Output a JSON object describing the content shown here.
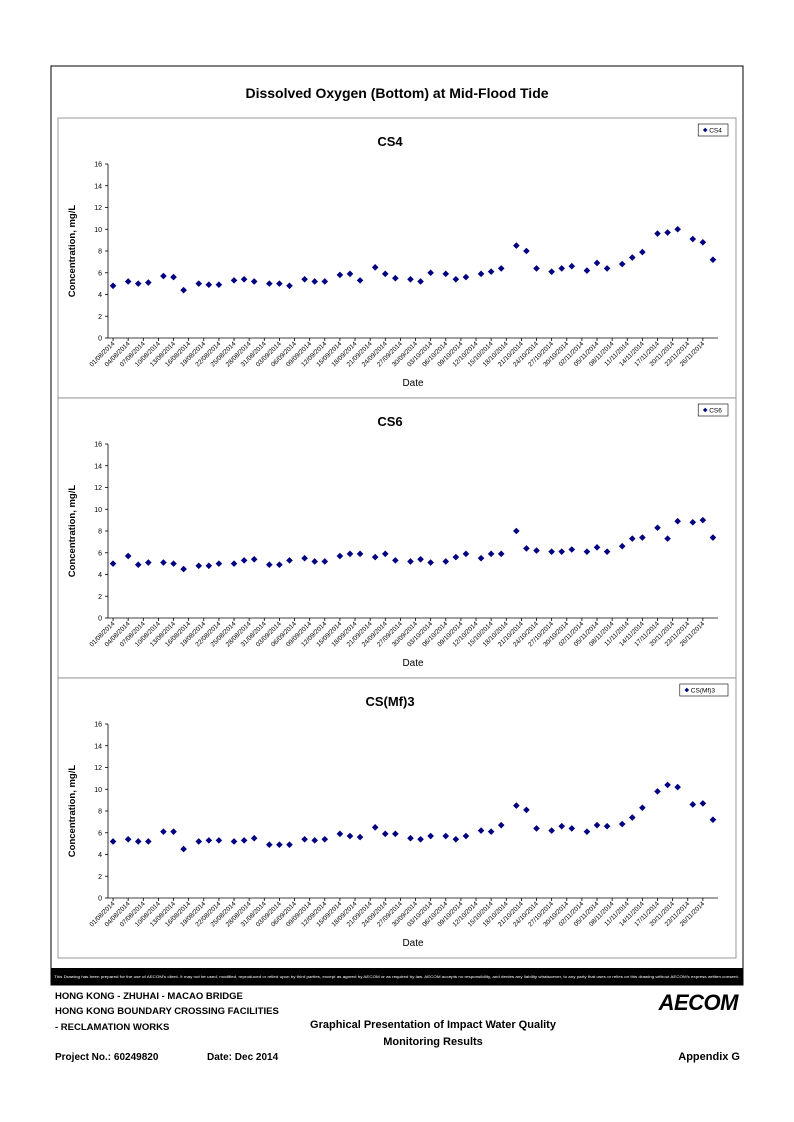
{
  "title": "Dissolved Oxygen (Bottom) at Mid-Flood Tide",
  "chart_data": [
    {
      "type": "scatter",
      "title": "CS4",
      "x_label": "Date",
      "y_label": "Concentration, mg/L",
      "legend": "upper right",
      "x": [
        "01/08/2014",
        "04/08/2014",
        "06/08/2014",
        "08/08/2014",
        "11/08/2014",
        "13/08/2014",
        "15/08/2014",
        "18/08/2014",
        "20/08/2014",
        "22/08/2014",
        "25/08/2014",
        "27/08/2014",
        "29/08/2014",
        "01/09/2014",
        "03/09/2014",
        "05/09/2014",
        "08/09/2014",
        "10/09/2014",
        "12/09/2014",
        "15/09/2014",
        "17/09/2014",
        "19/09/2014",
        "22/09/2014",
        "24/09/2014",
        "26/09/2014",
        "29/09/2014",
        "01/10/2014",
        "03/10/2014",
        "06/10/2014",
        "08/10/2014",
        "10/10/2014",
        "13/10/2014",
        "15/10/2014",
        "17/10/2014",
        "20/10/2014",
        "22/10/2014",
        "24/10/2014",
        "27/10/2014",
        "29/10/2014",
        "31/10/2014",
        "03/11/2014",
        "05/11/2014",
        "07/11/2014",
        "10/11/2014",
        "12/11/2014",
        "14/11/2014",
        "17/11/2014",
        "19/11/2014",
        "21/11/2014",
        "24/11/2014",
        "26/11/2014",
        "28/11/2014"
      ],
      "xlim": [
        "31/07/2014",
        "29/11/2014"
      ],
      "xticks": [
        "01/08/2014",
        "04/08/2014",
        "07/08/2014",
        "10/08/2014",
        "13/08/2014",
        "16/08/2014",
        "19/08/2014",
        "22/08/2014",
        "25/08/2014",
        "28/08/2014",
        "31/08/2014",
        "03/09/2014",
        "06/09/2014",
        "09/09/2014",
        "12/09/2014",
        "15/09/2014",
        "18/09/2014",
        "21/09/2014",
        "24/09/2014",
        "27/09/2014",
        "30/09/2014",
        "03/10/2014",
        "06/10/2014",
        "09/10/2014",
        "12/10/2014",
        "15/10/2014",
        "18/10/2014",
        "21/10/2014",
        "24/10/2014",
        "27/10/2014",
        "30/10/2014",
        "02/11/2014",
        "05/11/2014",
        "08/11/2014",
        "11/11/2014",
        "14/11/2014",
        "17/11/2014",
        "20/11/2014",
        "23/11/2014",
        "26/11/2014"
      ],
      "ylim": [
        0,
        16
      ],
      "yticks": [
        0,
        2,
        4,
        6,
        8,
        10,
        12,
        14,
        16
      ],
      "series": [
        {
          "name": "CS4",
          "color": "#000080",
          "values": [
            4.8,
            5.2,
            5.0,
            5.1,
            5.7,
            5.6,
            4.4,
            5.0,
            4.9,
            4.9,
            5.3,
            5.4,
            5.2,
            5.0,
            5.0,
            4.8,
            5.4,
            5.2,
            5.2,
            5.8,
            5.9,
            5.3,
            6.5,
            5.9,
            5.5,
            5.4,
            5.2,
            6.0,
            5.9,
            5.4,
            5.6,
            5.9,
            6.1,
            6.4,
            8.5,
            8.0,
            6.4,
            6.1,
            6.4,
            6.6,
            6.2,
            6.9,
            6.4,
            6.8,
            7.4,
            7.9,
            9.6,
            9.7,
            10.0,
            9.1,
            8.8,
            7.2
          ]
        }
      ]
    },
    {
      "type": "scatter",
      "title": "CS6",
      "x_label": "Date",
      "y_label": "Concentration, mg/L",
      "legend": "upper right",
      "x": [
        "01/08/2014",
        "04/08/2014",
        "06/08/2014",
        "08/08/2014",
        "11/08/2014",
        "13/08/2014",
        "15/08/2014",
        "18/08/2014",
        "20/08/2014",
        "22/08/2014",
        "25/08/2014",
        "27/08/2014",
        "29/08/2014",
        "01/09/2014",
        "03/09/2014",
        "05/09/2014",
        "08/09/2014",
        "10/09/2014",
        "12/09/2014",
        "15/09/2014",
        "17/09/2014",
        "19/09/2014",
        "22/09/2014",
        "24/09/2014",
        "26/09/2014",
        "29/09/2014",
        "01/10/2014",
        "03/10/2014",
        "06/10/2014",
        "08/10/2014",
        "10/10/2014",
        "13/10/2014",
        "15/10/2014",
        "17/10/2014",
        "20/10/2014",
        "22/10/2014",
        "24/10/2014",
        "27/10/2014",
        "29/10/2014",
        "31/10/2014",
        "03/11/2014",
        "05/11/2014",
        "07/11/2014",
        "10/11/2014",
        "12/11/2014",
        "14/11/2014",
        "17/11/2014",
        "19/11/2014",
        "21/11/2014",
        "24/11/2014",
        "26/11/2014",
        "28/11/2014"
      ],
      "xlim": [
        "31/07/2014",
        "29/11/2014"
      ],
      "xticks": [
        "01/08/2014",
        "04/08/2014",
        "07/08/2014",
        "10/08/2014",
        "13/08/2014",
        "16/08/2014",
        "19/08/2014",
        "22/08/2014",
        "25/08/2014",
        "28/08/2014",
        "31/08/2014",
        "03/09/2014",
        "06/09/2014",
        "09/09/2014",
        "12/09/2014",
        "15/09/2014",
        "18/09/2014",
        "21/09/2014",
        "24/09/2014",
        "27/09/2014",
        "30/09/2014",
        "03/10/2014",
        "06/10/2014",
        "09/10/2014",
        "12/10/2014",
        "15/10/2014",
        "18/10/2014",
        "21/10/2014",
        "24/10/2014",
        "27/10/2014",
        "30/10/2014",
        "02/11/2014",
        "05/11/2014",
        "08/11/2014",
        "11/11/2014",
        "14/11/2014",
        "17/11/2014",
        "20/11/2014",
        "23/11/2014",
        "26/11/2014"
      ],
      "ylim": [
        0,
        16
      ],
      "yticks": [
        0,
        2,
        4,
        6,
        8,
        10,
        12,
        14,
        16
      ],
      "series": [
        {
          "name": "CS6",
          "color": "#000080",
          "values": [
            5.0,
            5.7,
            4.9,
            5.1,
            5.1,
            5.0,
            4.5,
            4.8,
            4.8,
            5.0,
            5.0,
            5.3,
            5.4,
            4.9,
            4.9,
            5.3,
            5.5,
            5.2,
            5.2,
            5.7,
            5.9,
            5.9,
            5.6,
            5.9,
            5.3,
            5.2,
            5.4,
            5.1,
            5.2,
            5.6,
            5.9,
            5.5,
            5.9,
            5.9,
            8.0,
            6.4,
            6.2,
            6.1,
            6.1,
            6.3,
            6.1,
            6.5,
            6.1,
            6.6,
            7.3,
            7.4,
            8.3,
            7.3,
            8.9,
            8.8,
            9.0,
            7.4
          ]
        }
      ]
    },
    {
      "type": "scatter",
      "title": "CS(Mf)3",
      "x_label": "Date",
      "y_label": "Concentration, mg/L",
      "legend": "upper right",
      "x": [
        "01/08/2014",
        "04/08/2014",
        "06/08/2014",
        "08/08/2014",
        "11/08/2014",
        "13/08/2014",
        "15/08/2014",
        "18/08/2014",
        "20/08/2014",
        "22/08/2014",
        "25/08/2014",
        "27/08/2014",
        "29/08/2014",
        "01/09/2014",
        "03/09/2014",
        "05/09/2014",
        "08/09/2014",
        "10/09/2014",
        "12/09/2014",
        "15/09/2014",
        "17/09/2014",
        "19/09/2014",
        "22/09/2014",
        "24/09/2014",
        "26/09/2014",
        "29/09/2014",
        "01/10/2014",
        "03/10/2014",
        "06/10/2014",
        "08/10/2014",
        "10/10/2014",
        "13/10/2014",
        "15/10/2014",
        "17/10/2014",
        "20/10/2014",
        "22/10/2014",
        "24/10/2014",
        "27/10/2014",
        "29/10/2014",
        "31/10/2014",
        "03/11/2014",
        "05/11/2014",
        "07/11/2014",
        "10/11/2014",
        "12/11/2014",
        "14/11/2014",
        "17/11/2014",
        "19/11/2014",
        "21/11/2014",
        "24/11/2014",
        "26/11/2014",
        "28/11/2014"
      ],
      "xlim": [
        "31/07/2014",
        "29/11/2014"
      ],
      "xticks": [
        "01/08/2014",
        "04/08/2014",
        "07/08/2014",
        "10/08/2014",
        "13/08/2014",
        "16/08/2014",
        "19/08/2014",
        "22/08/2014",
        "25/08/2014",
        "28/08/2014",
        "31/08/2014",
        "03/09/2014",
        "06/09/2014",
        "09/09/2014",
        "12/09/2014",
        "15/09/2014",
        "18/09/2014",
        "21/09/2014",
        "24/09/2014",
        "27/09/2014",
        "30/09/2014",
        "03/10/2014",
        "06/10/2014",
        "09/10/2014",
        "12/10/2014",
        "15/10/2014",
        "18/10/2014",
        "21/10/2014",
        "24/10/2014",
        "27/10/2014",
        "30/10/2014",
        "02/11/2014",
        "05/11/2014",
        "08/11/2014",
        "11/11/2014",
        "14/11/2014",
        "17/11/2014",
        "20/11/2014",
        "23/11/2014",
        "26/11/2014"
      ],
      "ylim": [
        0,
        16
      ],
      "yticks": [
        0,
        2,
        4,
        6,
        8,
        10,
        12,
        14,
        16
      ],
      "series": [
        {
          "name": "CS(Mf)3",
          "color": "#000080",
          "values": [
            5.2,
            5.4,
            5.2,
            5.2,
            6.1,
            6.1,
            4.5,
            5.2,
            5.3,
            5.3,
            5.2,
            5.3,
            5.5,
            4.9,
            4.9,
            4.9,
            5.4,
            5.3,
            5.4,
            5.9,
            5.7,
            5.6,
            6.5,
            5.9,
            5.9,
            5.5,
            5.4,
            5.7,
            5.7,
            5.4,
            5.7,
            6.2,
            6.1,
            6.7,
            8.5,
            8.1,
            6.4,
            6.2,
            6.6,
            6.4,
            6.1,
            6.7,
            6.6,
            6.8,
            7.4,
            8.3,
            9.8,
            10.4,
            10.2,
            8.6,
            8.7,
            7.2
          ]
        }
      ]
    }
  ],
  "disclaimer": "This Drawing has been prepared for the use of AECOM's client. It may not be used, modified, reproduced or relied upon by third parties, except as agreed by AECOM or as required by law. AECOM accepts no responsibility, and denies any liability whatsoever, to any party that uses or relies on this drawing without AECOM's express written consent.",
  "footer": {
    "project_lines": [
      "HONG KONG - ZHUHAI - MACAO BRIDGE",
      "HONG KONG BOUNDARY CROSSING FACILITIES",
      "- RECLAMATION WORKS"
    ],
    "heading_lines": [
      "Graphical Presentation of Impact Water Quality",
      "Monitoring Results"
    ],
    "project_no": "Project No.: 60249820",
    "date": "Date: Dec 2014",
    "appendix": "Appendix G",
    "logo": "AECOM"
  }
}
